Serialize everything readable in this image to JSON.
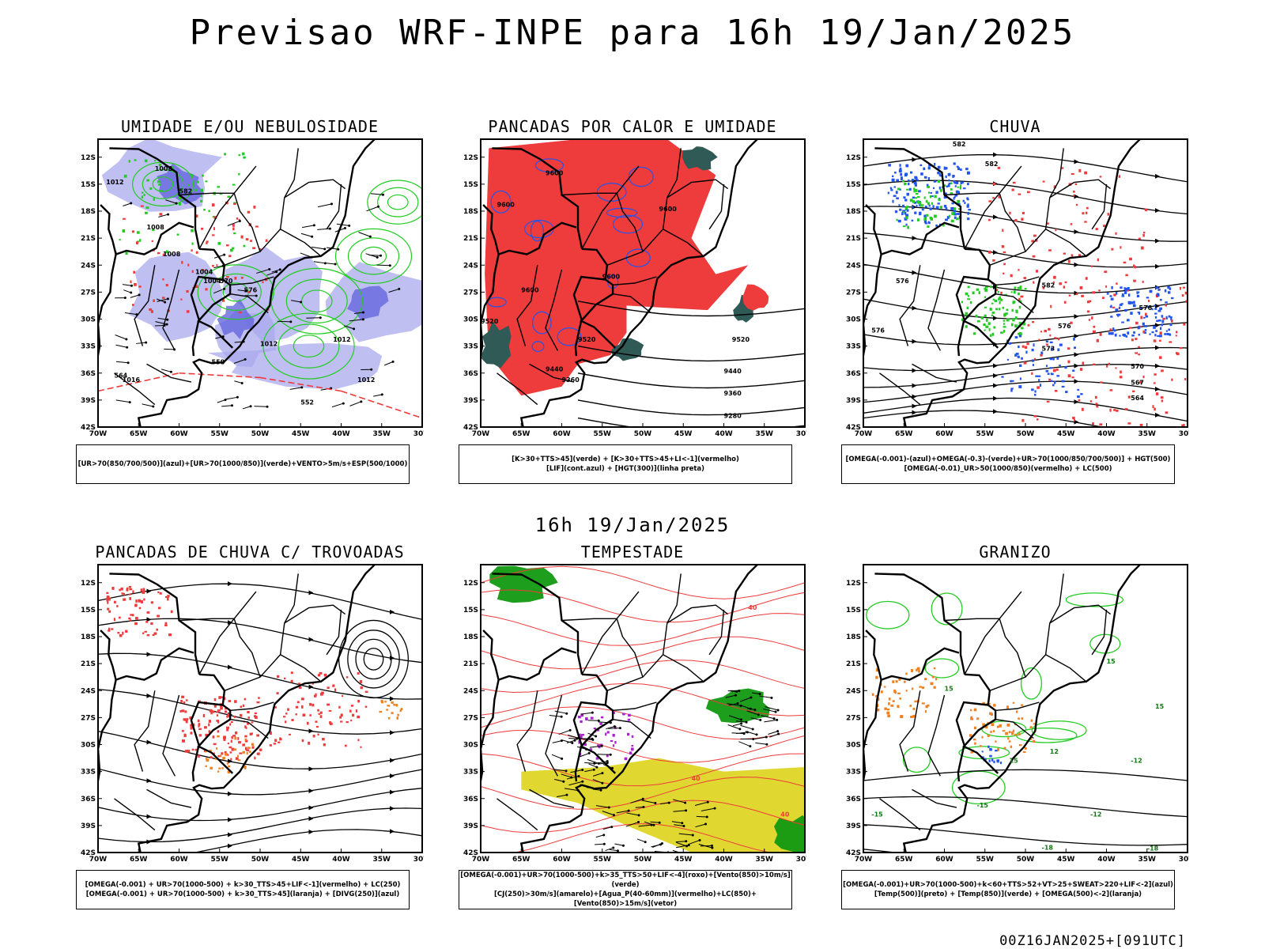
{
  "title": "Previsao WRF-INPE  para 16h 19/Jan/2025",
  "mid_title": "16h 19/Jan/2025",
  "footer": "00Z16JAN2025+[091UTC]",
  "axis": {
    "lat_labels": [
      "12S",
      "15S",
      "18S",
      "21S",
      "24S",
      "27S",
      "30S",
      "33S",
      "36S",
      "39S",
      "42S"
    ],
    "lon_labels": [
      "70W",
      "65W",
      "60W",
      "55W",
      "50W",
      "45W",
      "40W",
      "35W",
      "30W"
    ]
  },
  "colors": {
    "red": "#ee3b3b",
    "green": "#22cc22",
    "blue": "#2255ee",
    "lavender": "#aaaaee",
    "yellow": "#e0d830",
    "orange": "#f08020",
    "darkteal": "#2f5a55"
  },
  "panels": [
    {
      "title": "UMIDADE E/OU NEBULOSIDADE",
      "legend": [
        "[UR>70(850/700/500)](azul)+[UR>70(1000/850)](verde)+VENTO>5m/s+ESP(500/1000)"
      ],
      "contour_labels": [
        "1008",
        "1012",
        "1004",
        "1008",
        "1012",
        "1016",
        "1012",
        "576",
        "570",
        "582",
        "564",
        "558",
        "552",
        "1012",
        "1008",
        "1004"
      ]
    },
    {
      "title": "PANCADAS POR CALOR E UMIDADE",
      "legend": [
        "[K>30+TTS>45](verde) + [K>30+TTS>45+LI<-1](vermelho)",
        "[LIF](cont.azul) + [HGT(300)](linha preta)"
      ],
      "contour_labels": [
        "9600",
        "9600",
        "9600",
        "9600",
        "9600",
        "9520",
        "9520",
        "9440",
        "9520",
        "9440",
        "9360",
        "9360",
        "9280"
      ]
    },
    {
      "title": "CHUVA",
      "legend": [
        "[OMEGA(-0.001)-(azul)+OMEGA(-0.3)-(verde)+UR>70(1000/850/700/500)] + HGT(500)",
        "[OMEGA(-0.01)_UR>50(1000/850)(vermelho) + LC(500)"
      ],
      "contour_labels": [
        "582",
        "582",
        "576",
        "582",
        "576",
        "576",
        "576",
        "573",
        "570",
        "567",
        "564"
      ]
    },
    {
      "title": "PANCADAS DE CHUVA C/ TROVOADAS",
      "legend": [
        "[OMEGA(-0.001) + UR>70(1000-500) + k>30_TTS>45+LIF<-1](vermelho) + LC(250)",
        "[OMEGA(-0.001) + UR>70(1000-500) + k>30_TTS>45](laranja) + [DIVG(250)](azul)"
      ],
      "contour_labels": []
    },
    {
      "title": "TEMPESTADE",
      "legend": [
        "[OMEGA(-0.001)+UR>70(1000-500)+k>35_TTS>50+LIF<-4](roxo)+[Vento(850)>10m/s](verde)",
        "[CJ(250)>30m/s](amarelo)+[Agua_P(40-60mm)](vermelho)+LC(850)+[Vento(850)>15m/s](vetor)"
      ],
      "contour_labels": [
        "40",
        "40",
        "40"
      ]
    },
    {
      "title": "GRANIZO",
      "legend": [
        "[OMEGA(-0.001)+UR>70(1000-500)+k<60+TTS>52+VT>25+SWEAT>220+LIF<-2](azul)",
        "[Temp(500)](preto) + [Temp(850)](verde) + [OMEGA(500)<-2](laranja)"
      ],
      "contour_labels": [
        "15",
        "15",
        "15",
        "12",
        "15",
        "-12",
        "-15",
        "-15",
        "-18",
        "-18",
        "-12"
      ]
    }
  ]
}
